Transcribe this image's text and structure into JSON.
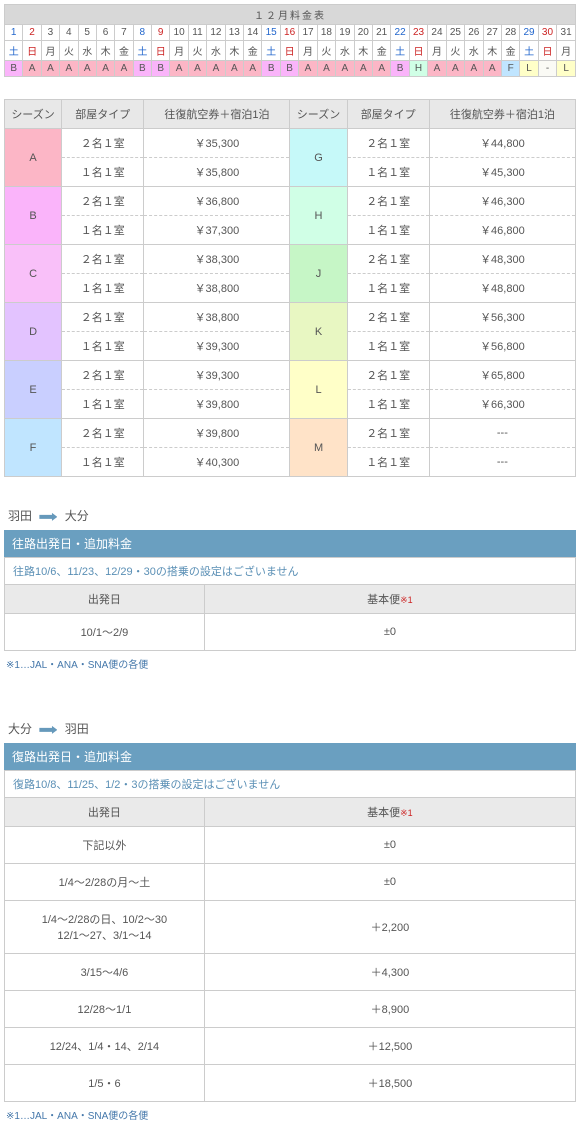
{
  "calendar": {
    "title": "１２月料金表",
    "days": [
      {
        "n": "1",
        "nc": "sat",
        "d": "土",
        "dc": "sat",
        "s": "B",
        "sc": "bg-b"
      },
      {
        "n": "2",
        "nc": "sun",
        "d": "日",
        "dc": "sun",
        "s": "A",
        "sc": "bg-a"
      },
      {
        "n": "3",
        "nc": "",
        "d": "月",
        "dc": "",
        "s": "A",
        "sc": "bg-a"
      },
      {
        "n": "4",
        "nc": "",
        "d": "火",
        "dc": "",
        "s": "A",
        "sc": "bg-a"
      },
      {
        "n": "5",
        "nc": "",
        "d": "水",
        "dc": "",
        "s": "A",
        "sc": "bg-a"
      },
      {
        "n": "6",
        "nc": "",
        "d": "木",
        "dc": "",
        "s": "A",
        "sc": "bg-a"
      },
      {
        "n": "7",
        "nc": "",
        "d": "金",
        "dc": "",
        "s": "A",
        "sc": "bg-a"
      },
      {
        "n": "8",
        "nc": "sat",
        "d": "土",
        "dc": "sat",
        "s": "B",
        "sc": "bg-b"
      },
      {
        "n": "9",
        "nc": "sun",
        "d": "日",
        "dc": "sun",
        "s": "B",
        "sc": "bg-b"
      },
      {
        "n": "10",
        "nc": "",
        "d": "月",
        "dc": "",
        "s": "A",
        "sc": "bg-a"
      },
      {
        "n": "11",
        "nc": "",
        "d": "火",
        "dc": "",
        "s": "A",
        "sc": "bg-a"
      },
      {
        "n": "12",
        "nc": "",
        "d": "水",
        "dc": "",
        "s": "A",
        "sc": "bg-a"
      },
      {
        "n": "13",
        "nc": "",
        "d": "木",
        "dc": "",
        "s": "A",
        "sc": "bg-a"
      },
      {
        "n": "14",
        "nc": "",
        "d": "金",
        "dc": "",
        "s": "A",
        "sc": "bg-a"
      },
      {
        "n": "15",
        "nc": "sat",
        "d": "土",
        "dc": "sat",
        "s": "B",
        "sc": "bg-b"
      },
      {
        "n": "16",
        "nc": "sun",
        "d": "日",
        "dc": "sun",
        "s": "B",
        "sc": "bg-b"
      },
      {
        "n": "17",
        "nc": "",
        "d": "月",
        "dc": "",
        "s": "A",
        "sc": "bg-a"
      },
      {
        "n": "18",
        "nc": "",
        "d": "火",
        "dc": "",
        "s": "A",
        "sc": "bg-a"
      },
      {
        "n": "19",
        "nc": "",
        "d": "水",
        "dc": "",
        "s": "A",
        "sc": "bg-a"
      },
      {
        "n": "20",
        "nc": "",
        "d": "木",
        "dc": "",
        "s": "A",
        "sc": "bg-a"
      },
      {
        "n": "21",
        "nc": "",
        "d": "金",
        "dc": "",
        "s": "A",
        "sc": "bg-a"
      },
      {
        "n": "22",
        "nc": "sat",
        "d": "土",
        "dc": "sat",
        "s": "B",
        "sc": "bg-b"
      },
      {
        "n": "23",
        "nc": "sun",
        "d": "日",
        "dc": "sun",
        "s": "H",
        "sc": "bg-h"
      },
      {
        "n": "24",
        "nc": "",
        "d": "月",
        "dc": "",
        "s": "A",
        "sc": "bg-a"
      },
      {
        "n": "25",
        "nc": "",
        "d": "火",
        "dc": "",
        "s": "A",
        "sc": "bg-a"
      },
      {
        "n": "26",
        "nc": "",
        "d": "水",
        "dc": "",
        "s": "A",
        "sc": "bg-a"
      },
      {
        "n": "27",
        "nc": "",
        "d": "木",
        "dc": "",
        "s": "A",
        "sc": "bg-a"
      },
      {
        "n": "28",
        "nc": "",
        "d": "金",
        "dc": "",
        "s": "F",
        "sc": "bg-f"
      },
      {
        "n": "29",
        "nc": "sat",
        "d": "土",
        "dc": "sat",
        "s": "L",
        "sc": "bg-l"
      },
      {
        "n": "30",
        "nc": "sun",
        "d": "日",
        "dc": "sun",
        "s": "-",
        "sc": "bg-dash"
      },
      {
        "n": "31",
        "nc": "",
        "d": "月",
        "dc": "",
        "s": "L",
        "sc": "bg-l"
      }
    ]
  },
  "pricing": {
    "headers": [
      "シーズン",
      "部屋タイプ",
      "往復航空券＋宿泊1泊",
      "シーズン",
      "部屋タイプ",
      "往復航空券＋宿泊1泊"
    ],
    "rows": [
      {
        "l": "A",
        "lc": "bg-a",
        "l1": "２名１室",
        "l1p": "￥35,300",
        "l2": "１名１室",
        "l2p": "￥35,800",
        "r": "G",
        "rc": "bg-g",
        "r1": "２名１室",
        "r1p": "￥44,800",
        "r2": "１名１室",
        "r2p": "￥45,300"
      },
      {
        "l": "B",
        "lc": "bg-b",
        "l1": "２名１室",
        "l1p": "￥36,800",
        "l2": "１名１室",
        "l2p": "￥37,300",
        "r": "H",
        "rc": "bg-h",
        "r1": "２名１室",
        "r1p": "￥46,300",
        "r2": "１名１室",
        "r2p": "￥46,800"
      },
      {
        "l": "C",
        "lc": "bg-c",
        "l1": "２名１室",
        "l1p": "￥38,300",
        "l2": "１名１室",
        "l2p": "￥38,800",
        "r": "J",
        "rc": "bg-j",
        "r1": "２名１室",
        "r1p": "￥48,300",
        "r2": "１名１室",
        "r2p": "￥48,800"
      },
      {
        "l": "D",
        "lc": "bg-d",
        "l1": "２名１室",
        "l1p": "￥38,800",
        "l2": "１名１室",
        "l2p": "￥39,300",
        "r": "K",
        "rc": "bg-k",
        "r1": "２名１室",
        "r1p": "￥56,300",
        "r2": "１名１室",
        "r2p": "￥56,800"
      },
      {
        "l": "E",
        "lc": "bg-e",
        "l1": "２名１室",
        "l1p": "￥39,300",
        "l2": "１名１室",
        "l2p": "￥39,800",
        "r": "L",
        "rc": "bg-l",
        "r1": "２名１室",
        "r1p": "￥65,800",
        "r2": "１名１室",
        "r2p": "￥66,300"
      },
      {
        "l": "F",
        "lc": "bg-f",
        "l1": "２名１室",
        "l1p": "￥39,800",
        "l2": "１名１室",
        "l2p": "￥40,300",
        "r": "M",
        "rc": "bg-m",
        "r1": "２名１室",
        "r1p": "---",
        "r2": "１名１室",
        "r2p": "---"
      }
    ]
  },
  "outbound": {
    "from": "羽田",
    "to": "大分",
    "band": "往路出発日・追加料金",
    "notice": "往路10/6、11/23、12/29・30の搭乗の設定はございません",
    "head_date": "出発日",
    "head_fare": "基本便",
    "ref": "※1",
    "rows": [
      {
        "d": "10/1～2/9",
        "f": "±0"
      }
    ],
    "footnote": "※1…JAL・ANA・SNA便の各便"
  },
  "inbound": {
    "from": "大分",
    "to": "羽田",
    "band": "復路出発日・追加料金",
    "notice": "復路10/8、11/25、1/2・3の搭乗の設定はございません",
    "head_date": "出発日",
    "head_fare": "基本便",
    "ref": "※1",
    "rows": [
      {
        "d": "下記以外",
        "f": "±0"
      },
      {
        "d": "1/4～2/28の月～土",
        "f": "±0"
      },
      {
        "d": "1/4～2/28の日、10/2～30\n12/1～27、3/1～14",
        "f": "＋2,200"
      },
      {
        "d": "3/15～4/6",
        "f": "＋4,300"
      },
      {
        "d": "12/28～1/1",
        "f": "＋8,900"
      },
      {
        "d": "12/24、1/4・14、2/14",
        "f": "＋12,500"
      },
      {
        "d": "1/5・6",
        "f": "＋18,500"
      }
    ],
    "footnote": "※1…JAL・ANA・SNA便の各便"
  }
}
